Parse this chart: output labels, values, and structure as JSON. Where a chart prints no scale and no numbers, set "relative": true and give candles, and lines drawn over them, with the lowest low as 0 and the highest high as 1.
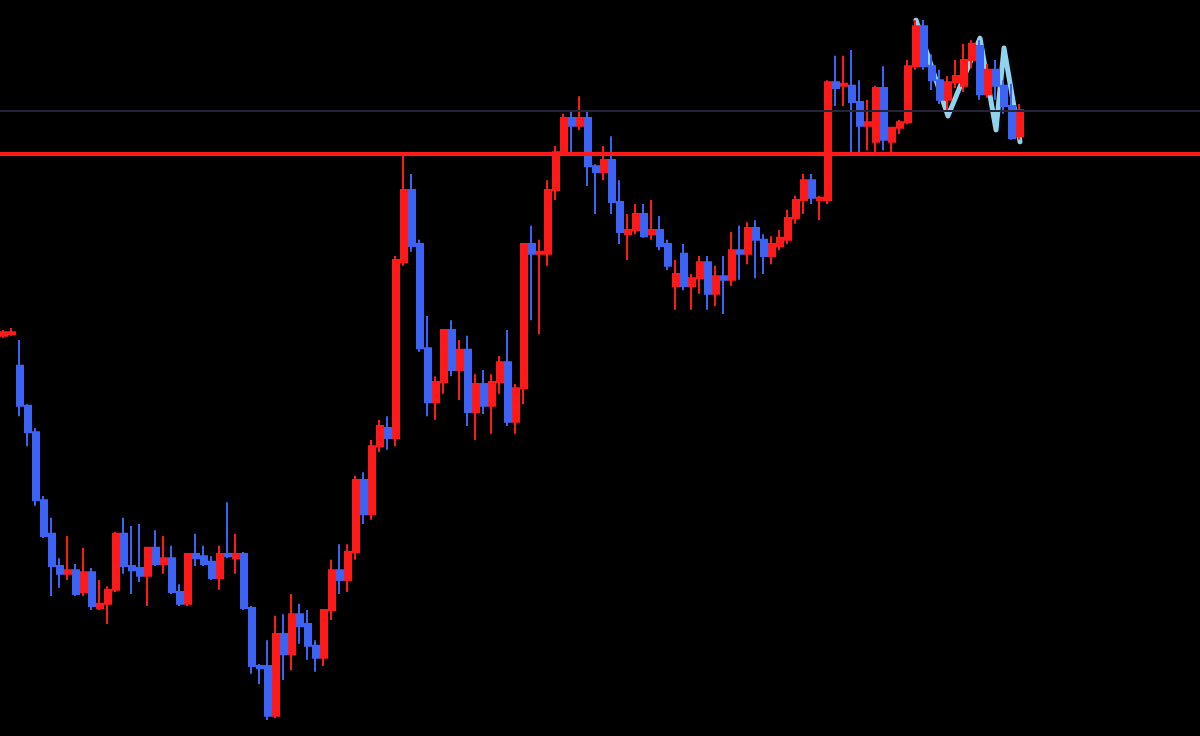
{
  "chart_data": {
    "type": "candlestick",
    "relative": true,
    "categories": [
      null,
      null,
      null,
      null,
      null,
      null,
      null,
      null,
      null,
      null,
      null,
      null,
      null,
      null,
      null,
      null,
      null,
      null,
      null,
      null,
      null,
      null,
      null,
      null,
      null,
      null,
      null,
      null,
      null,
      null,
      null,
      null,
      null,
      null,
      null,
      null,
      null,
      null,
      null,
      null,
      null,
      null,
      null,
      null,
      null,
      null,
      null,
      null,
      null,
      null,
      null,
      null,
      null,
      null,
      null,
      null,
      null,
      null,
      null,
      null,
      null,
      null,
      null,
      null,
      null,
      null,
      null,
      null,
      null,
      null,
      null,
      null,
      null,
      null,
      null,
      null,
      null,
      null,
      null,
      null,
      null,
      null,
      null,
      null,
      null,
      null,
      null,
      null,
      null,
      null,
      null,
      null,
      null,
      null,
      null,
      null,
      null,
      null,
      null,
      null,
      null,
      null,
      null,
      null,
      null,
      null,
      null,
      null,
      null,
      null,
      null,
      null,
      null,
      null,
      null,
      null,
      null,
      null,
      null,
      null,
      null,
      null,
      null,
      null,
      null,
      null,
      null,
      null
    ],
    "series": [
      {
        "colors": [
          "#ff1a1a",
          "#ff1a1a",
          "#3d63f5",
          "#3d63f5",
          "#3d63f5",
          "#3d63f5",
          "#3d63f5",
          "#3d63f5",
          "#ff1a1a",
          "#3d63f5",
          "#ff1a1a",
          "#3d63f5",
          "#ff1a1a",
          "#ff1a1a",
          "#ff1a1a",
          "#3d63f5",
          "#3d63f5",
          "#3d63f5",
          "#ff1a1a",
          "#3d63f5",
          "#ff1a1a",
          "#3d63f5",
          "#3d63f5",
          "#ff1a1a",
          "#3d63f5",
          "#3d63f5",
          "#3d63f5",
          "#ff1a1a",
          "#3d63f5",
          "#ff1a1a",
          "#3d63f5",
          "#3d63f5",
          "#3d63f5",
          "#3d63f5",
          "#ff1a1a",
          "#3d63f5",
          "#ff1a1a",
          "#3d63f5",
          "#3d63f5",
          "#3d63f5",
          "#ff1a1a",
          "#ff1a1a",
          "#3d63f5",
          "#ff1a1a",
          "#ff1a1a",
          "#3d63f5",
          "#ff1a1a",
          "#ff1a1a",
          "#3d63f5",
          "#ff1a1a",
          "#ff1a1a",
          "#3d63f5",
          "#3d63f5",
          "#3d63f5",
          "#ff1a1a",
          "#ff1a1a",
          "#3d63f5",
          "#ff1a1a",
          "#3d63f5",
          "#ff1a1a",
          "#3d63f5",
          "#ff1a1a",
          "#ff1a1a",
          "#3d63f5",
          "#ff1a1a",
          "#ff1a1a",
          "#3d63f5",
          "#ff1a1a",
          "#ff1a1a",
          "#ff1a1a",
          "#ff1a1a",
          "#3d63f5",
          "#ff1a1a",
          "#3d63f5",
          "#3d63f5",
          "#ff1a1a",
          "#3d63f5",
          "#3d63f5",
          "#ff1a1a",
          "#ff1a1a",
          "#3d63f5",
          "#ff1a1a",
          "#3d63f5",
          "#3d63f5",
          "#ff1a1a",
          "#3d63f5",
          "#ff1a1a",
          "#ff1a1a",
          "#3d63f5",
          "#ff1a1a",
          "#3d63f5",
          "#ff1a1a",
          "#3d63f5",
          "#ff1a1a",
          "#3d63f5",
          "#3d63f5",
          "#ff1a1a",
          "#ff1a1a",
          "#ff1a1a",
          "#ff1a1a",
          "#ff1a1a",
          "#3d63f5",
          "#ff1a1a",
          "#ff1a1a",
          "#3d63f5",
          "#ff1a1a",
          "#3d63f5",
          "#3d63f5",
          "#ff1a1a",
          "#ff1a1a",
          "#3d63f5",
          "#ff1a1a",
          "#ff1a1a",
          "#ff1a1a",
          "#ff1a1a",
          "#3d63f5",
          "#3d63f5",
          "#3d63f5",
          "#ff1a1a",
          "#ff1a1a",
          "#ff1a1a",
          "#ff1a1a",
          "#3d63f5",
          "#ff1a1a",
          "#3d63f5",
          "#3d63f5",
          "#3d63f5",
          "#ff1a1a"
        ],
        "ohlc": [
          [
            0.549,
            0.557,
            0.546,
            0.554
          ],
          [
            0.551,
            0.56,
            0.549,
            0.554
          ],
          [
            0.506,
            0.543,
            0.434,
            0.449
          ],
          [
            0.449,
            0.451,
            0.391,
            0.411
          ],
          [
            0.411,
            0.417,
            0.306,
            0.314
          ],
          [
            0.314,
            0.32,
            0.26,
            0.263
          ],
          [
            0.266,
            0.289,
            0.177,
            0.22
          ],
          [
            0.22,
            0.231,
            0.189,
            0.209
          ],
          [
            0.209,
            0.263,
            0.2,
            0.214
          ],
          [
            0.214,
            0.223,
            0.177,
            0.18
          ],
          [
            0.183,
            0.246,
            0.177,
            0.211
          ],
          [
            0.211,
            0.217,
            0.157,
            0.163
          ],
          [
            0.16,
            0.2,
            0.157,
            0.166
          ],
          [
            0.166,
            0.191,
            0.137,
            0.186
          ],
          [
            0.186,
            0.269,
            0.183,
            0.266
          ],
          [
            0.266,
            0.289,
            0.209,
            0.22
          ],
          [
            0.22,
            0.277,
            0.18,
            0.214
          ],
          [
            0.217,
            0.28,
            0.197,
            0.206
          ],
          [
            0.206,
            0.246,
            0.163,
            0.246
          ],
          [
            0.246,
            0.271,
            0.22,
            0.223
          ],
          [
            0.223,
            0.263,
            0.209,
            0.231
          ],
          [
            0.231,
            0.249,
            0.18,
            0.183
          ],
          [
            0.183,
            0.194,
            0.163,
            0.166
          ],
          [
            0.166,
            0.237,
            0.163,
            0.237
          ],
          [
            0.237,
            0.266,
            0.22,
            0.231
          ],
          [
            0.234,
            0.249,
            0.22,
            0.223
          ],
          [
            0.226,
            0.234,
            0.2,
            0.203
          ],
          [
            0.203,
            0.249,
            0.186,
            0.237
          ],
          [
            0.237,
            0.311,
            0.231,
            0.234
          ],
          [
            0.231,
            0.266,
            0.209,
            0.237
          ],
          [
            0.237,
            0.24,
            0.157,
            0.16
          ],
          [
            0.16,
            0.163,
            0.066,
            0.077
          ],
          [
            0.077,
            0.08,
            0.051,
            0.074
          ],
          [
            0.077,
            0.114,
            0,
            0.006
          ],
          [
            0.006,
            0.149,
            0.003,
            0.123
          ],
          [
            0.123,
            0.151,
            0.057,
            0.094
          ],
          [
            0.094,
            0.18,
            0.071,
            0.151
          ],
          [
            0.151,
            0.166,
            0.109,
            0.134
          ],
          [
            0.137,
            0.157,
            0.086,
            0.106
          ],
          [
            0.106,
            0.114,
            0.069,
            0.089
          ],
          [
            0.089,
            0.157,
            0.077,
            0.157
          ],
          [
            0.157,
            0.229,
            0.143,
            0.214
          ],
          [
            0.214,
            0.251,
            0.18,
            0.2
          ],
          [
            0.2,
            0.251,
            0.183,
            0.24
          ],
          [
            0.24,
            0.349,
            0.229,
            0.343
          ],
          [
            0.343,
            0.354,
            0.28,
            0.294
          ],
          [
            0.294,
            0.4,
            0.286,
            0.391
          ],
          [
            0.391,
            0.429,
            0.383,
            0.42
          ],
          [
            0.417,
            0.434,
            0.386,
            0.403
          ],
          [
            0.403,
            0.663,
            0.391,
            0.657
          ],
          [
            0.654,
            0.809,
            0.649,
            0.757
          ],
          [
            0.757,
            0.78,
            0.669,
            0.677
          ],
          [
            0.68,
            0.686,
            0.526,
            0.531
          ],
          [
            0.531,
            0.577,
            0.434,
            0.454
          ],
          [
            0.454,
            0.491,
            0.429,
            0.483
          ],
          [
            0.483,
            0.557,
            0.466,
            0.557
          ],
          [
            0.557,
            0.571,
            0.491,
            0.5
          ],
          [
            0.5,
            0.543,
            0.457,
            0.529
          ],
          [
            0.529,
            0.549,
            0.42,
            0.44
          ],
          [
            0.44,
            0.494,
            0.4,
            0.48
          ],
          [
            0.48,
            0.5,
            0.437,
            0.449
          ],
          [
            0.449,
            0.494,
            0.409,
            0.483
          ],
          [
            0.483,
            0.52,
            0.466,
            0.511
          ],
          [
            0.511,
            0.557,
            0.42,
            0.426
          ],
          [
            0.426,
            0.48,
            0.409,
            0.474
          ],
          [
            0.474,
            0.68,
            0.451,
            0.68
          ],
          [
            0.68,
            0.706,
            0.571,
            0.666
          ],
          [
            0.666,
            0.686,
            0.551,
            0.669
          ],
          [
            0.666,
            0.771,
            0.649,
            0.757
          ],
          [
            0.757,
            0.82,
            0.743,
            0.811
          ],
          [
            0.811,
            0.866,
            0.806,
            0.86
          ],
          [
            0.86,
            0.871,
            0.811,
            0.849
          ],
          [
            0.849,
            0.891,
            0.843,
            0.86
          ],
          [
            0.86,
            0.871,
            0.763,
            0.791
          ],
          [
            0.791,
            0.794,
            0.723,
            0.783
          ],
          [
            0.783,
            0.82,
            0.771,
            0.8
          ],
          [
            0.8,
            0.834,
            0.723,
            0.74
          ],
          [
            0.74,
            0.771,
            0.68,
            0.697
          ],
          [
            0.694,
            0.723,
            0.657,
            0.7
          ],
          [
            0.7,
            0.737,
            0.694,
            0.723
          ],
          [
            0.723,
            0.737,
            0.689,
            0.691
          ],
          [
            0.694,
            0.743,
            0.686,
            0.7
          ],
          [
            0.7,
            0.72,
            0.671,
            0.677
          ],
          [
            0.68,
            0.686,
            0.643,
            0.649
          ],
          [
            0.62,
            0.657,
            0.586,
            0.637
          ],
          [
            0.666,
            0.68,
            0.614,
            0.62
          ],
          [
            0.62,
            0.637,
            0.586,
            0.631
          ],
          [
            0.631,
            0.663,
            0.609,
            0.654
          ],
          [
            0.654,
            0.663,
            0.586,
            0.609
          ],
          [
            0.609,
            0.649,
            0.591,
            0.634
          ],
          [
            0.634,
            0.663,
            0.58,
            0.629
          ],
          [
            0.629,
            0.697,
            0.62,
            0.671
          ],
          [
            0.671,
            0.706,
            0.629,
            0.666
          ],
          [
            0.666,
            0.711,
            0.651,
            0.703
          ],
          [
            0.703,
            0.714,
            0.631,
            0.686
          ],
          [
            0.686,
            0.694,
            0.637,
            0.663
          ],
          [
            0.663,
            0.691,
            0.651,
            0.68
          ],
          [
            0.677,
            0.7,
            0.671,
            0.689
          ],
          [
            0.686,
            0.729,
            0.68,
            0.717
          ],
          [
            0.717,
            0.749,
            0.709,
            0.743
          ],
          [
            0.743,
            0.78,
            0.723,
            0.771
          ],
          [
            0.771,
            0.78,
            0.737,
            0.746
          ],
          [
            0.743,
            0.749,
            0.714,
            0.746
          ],
          [
            0.743,
            0.914,
            0.737,
            0.911
          ],
          [
            0.911,
            0.949,
            0.877,
            0.903
          ],
          [
            0.906,
            0.949,
            0.877,
            0.909
          ],
          [
            0.906,
            0.957,
            0.809,
            0.883
          ],
          [
            0.883,
            0.914,
            0.809,
            0.849
          ],
          [
            0.849,
            0.886,
            0.814,
            0.854
          ],
          [
            0.826,
            0.906,
            0.809,
            0.903
          ],
          [
            0.903,
            0.934,
            0.814,
            0.829
          ],
          [
            0.826,
            0.846,
            0.809,
            0.846
          ],
          [
            0.846,
            0.857,
            0.837,
            0.854
          ],
          [
            0.854,
            0.943,
            0.851,
            0.934
          ],
          [
            0.934,
            1,
            0.929,
            0.991
          ],
          [
            0.991,
            1,
            0.929,
            0.934
          ],
          [
            0.934,
            0.951,
            0.9,
            0.914
          ],
          [
            0.914,
            0.929,
            0.88,
            0.886
          ],
          [
            0.886,
            0.92,
            0.869,
            0.911
          ],
          [
            0.911,
            0.943,
            0.903,
            0.92
          ],
          [
            0.906,
            0.966,
            0.897,
            0.943
          ],
          [
            0.943,
            0.971,
            0.931,
            0.966
          ],
          [
            0.963,
            0.971,
            0.886,
            0.894
          ],
          [
            0.894,
            0.937,
            0.889,
            0.929
          ],
          [
            0.929,
            0.943,
            0.886,
            0.906
          ],
          [
            0.906,
            0.914,
            0.866,
            0.877
          ],
          [
            0.877,
            0.909,
            0.829,
            0.831
          ],
          [
            0.834,
            0.88,
            0.829,
            0.871
          ]
        ]
      },
      {
        "type": "line",
        "color": "#8fd3ee",
        "values": [
          null,
          null,
          null,
          null,
          null,
          null,
          null,
          null,
          null,
          null,
          null,
          null,
          null,
          null,
          null,
          null,
          null,
          null,
          null,
          null,
          null,
          null,
          null,
          null,
          null,
          null,
          null,
          null,
          null,
          null,
          null,
          null,
          null,
          null,
          null,
          null,
          null,
          null,
          null,
          null,
          null,
          null,
          null,
          null,
          null,
          null,
          null,
          null,
          null,
          null,
          null,
          null,
          null,
          null,
          null,
          null,
          null,
          null,
          null,
          null,
          null,
          null,
          null,
          null,
          null,
          null,
          null,
          null,
          null,
          null,
          null,
          null,
          null,
          null,
          null,
          null,
          null,
          null,
          null,
          null,
          null,
          null,
          null,
          null,
          null,
          null,
          null,
          null,
          null,
          null,
          null,
          null,
          null,
          null,
          null,
          null,
          null,
          null,
          null,
          null,
          null,
          null,
          null,
          null,
          null,
          null,
          null,
          null,
          null,
          null,
          null,
          null,
          null,
          null,
          1,
          null,
          null,
          null,
          0.863,
          null,
          null,
          null,
          0.974,
          null,
          0.843,
          0.96,
          null,
          0.826
        ]
      }
    ],
    "ref_lines": [
      {
        "axis": "y",
        "value": 0.809,
        "color": "#ff1a1a"
      },
      {
        "axis": "y",
        "value": 0.874,
        "color": "#23233a"
      }
    ],
    "grid": false
  }
}
